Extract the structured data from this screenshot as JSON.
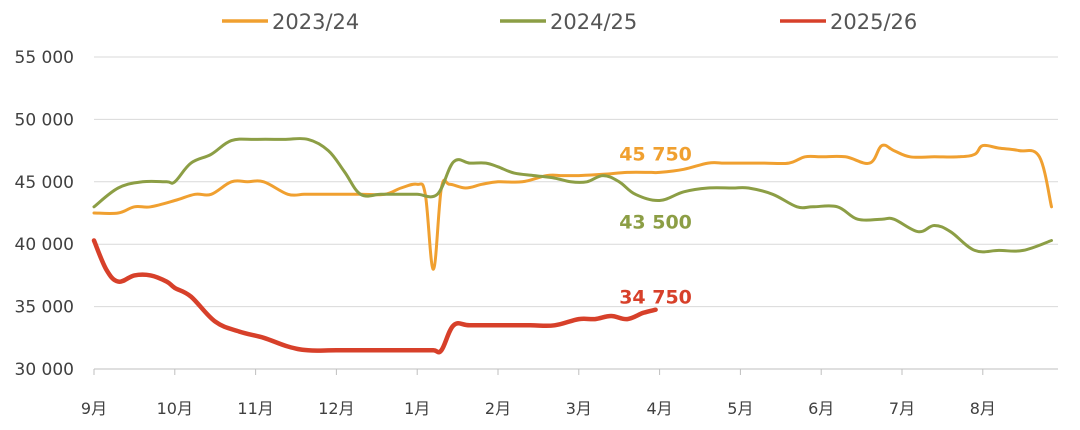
{
  "chart_data": {
    "type": "line",
    "title": "",
    "xlabel": "",
    "ylabel": "",
    "ylim": [
      30000,
      55000
    ],
    "y_ticks": [
      30000,
      35000,
      40000,
      45000,
      50000,
      55000
    ],
    "y_tick_labels": [
      "30 000",
      "35 000",
      "40 000",
      "45 000",
      "50 000",
      "55 000"
    ],
    "categories": [
      "9月",
      "10月",
      "11月",
      "12月",
      "1月",
      "2月",
      "3月",
      "4月",
      "5月",
      "6月",
      "7月",
      "8月"
    ],
    "grid": "horizontal",
    "legend_position": "top-center",
    "series": [
      {
        "name": "2023/24",
        "color": "#F0A030",
        "x": [
          0,
          0.3,
          0.5,
          0.7,
          1.0,
          1.25,
          1.45,
          1.7,
          1.9,
          2.1,
          2.4,
          2.6,
          2.8,
          3.0,
          3.3,
          3.6,
          3.8,
          4.0,
          4.1,
          4.2,
          4.3,
          4.4,
          4.6,
          4.8,
          5.0,
          5.3,
          5.6,
          5.8,
          6.0,
          6.3,
          6.6,
          6.9,
          7.0,
          7.3,
          7.6,
          7.8,
          8.0,
          8.3,
          8.6,
          8.8,
          9.0,
          9.3,
          9.6,
          9.75,
          9.9,
          10.1,
          10.4,
          10.7,
          10.9,
          11.0,
          11.2,
          11.45,
          11.7,
          11.85
        ],
        "values": [
          42500,
          42500,
          43000,
          43000,
          43500,
          44000,
          44000,
          45000,
          45000,
          45000,
          44000,
          44000,
          44000,
          44000,
          44000,
          44000,
          44500,
          44800,
          44000,
          38000,
          44500,
          44800,
          44500,
          44800,
          45000,
          45000,
          45500,
          45500,
          45500,
          45600,
          45750,
          45750,
          45750,
          46000,
          46500,
          46500,
          46500,
          46500,
          46500,
          47000,
          47000,
          47000,
          46500,
          47900,
          47500,
          47000,
          47000,
          47000,
          47200,
          47900,
          47700,
          47500,
          47000,
          43000
        ]
      },
      {
        "name": "2024/25",
        "color": "#8C9E45",
        "x": [
          0,
          0.3,
          0.6,
          0.9,
          1.0,
          1.2,
          1.45,
          1.7,
          2.0,
          2.35,
          2.65,
          2.9,
          3.1,
          3.3,
          3.55,
          3.8,
          4.0,
          4.25,
          4.45,
          4.65,
          4.85,
          5.0,
          5.2,
          5.45,
          5.7,
          5.9,
          6.1,
          6.3,
          6.5,
          6.7,
          7.0,
          7.3,
          7.6,
          7.9,
          8.1,
          8.4,
          8.7,
          8.9,
          9.2,
          9.45,
          9.75,
          9.9,
          10.2,
          10.4,
          10.6,
          10.9,
          11.2,
          11.5,
          11.85
        ],
        "values": [
          43000,
          44500,
          45000,
          45000,
          45000,
          46500,
          47200,
          48300,
          48400,
          48400,
          48400,
          47500,
          45800,
          44000,
          44000,
          44000,
          44000,
          44000,
          46600,
          46500,
          46500,
          46200,
          45700,
          45500,
          45300,
          45000,
          45000,
          45500,
          45000,
          44000,
          43500,
          44200,
          44500,
          44500,
          44500,
          44000,
          43000,
          43000,
          43000,
          42000,
          42000,
          42000,
          41000,
          41500,
          41000,
          39500,
          39500,
          39500,
          40300
        ]
      },
      {
        "name": "2025/26",
        "color": "#D7402A",
        "x": [
          0,
          0.15,
          0.3,
          0.5,
          0.7,
          0.9,
          1.0,
          1.2,
          1.5,
          1.8,
          2.1,
          2.4,
          2.65,
          3.0,
          3.5,
          4.0,
          4.2,
          4.3,
          4.45,
          4.65,
          5.0,
          5.4,
          5.7,
          6.0,
          6.2,
          6.4,
          6.6,
          6.8,
          6.95
        ],
        "values": [
          40300,
          38000,
          37000,
          37500,
          37500,
          37000,
          36500,
          35800,
          33800,
          33000,
          32500,
          31800,
          31500,
          31500,
          31500,
          31500,
          31500,
          31500,
          33500,
          33500,
          33500,
          33500,
          33500,
          34000,
          34000,
          34250,
          34000,
          34500,
          34750
        ]
      }
    ],
    "annotations": [
      {
        "text": "45 750",
        "series": "2023/24",
        "color": "#F0A030",
        "x": 6.95,
        "y": 45750
      },
      {
        "text": "43 500",
        "series": "2024/25",
        "color": "#8C9E45",
        "x": 6.95,
        "y": 43500
      },
      {
        "text": "34 750",
        "series": "2025/26",
        "color": "#D7402A",
        "x": 6.95,
        "y": 34750
      }
    ]
  }
}
